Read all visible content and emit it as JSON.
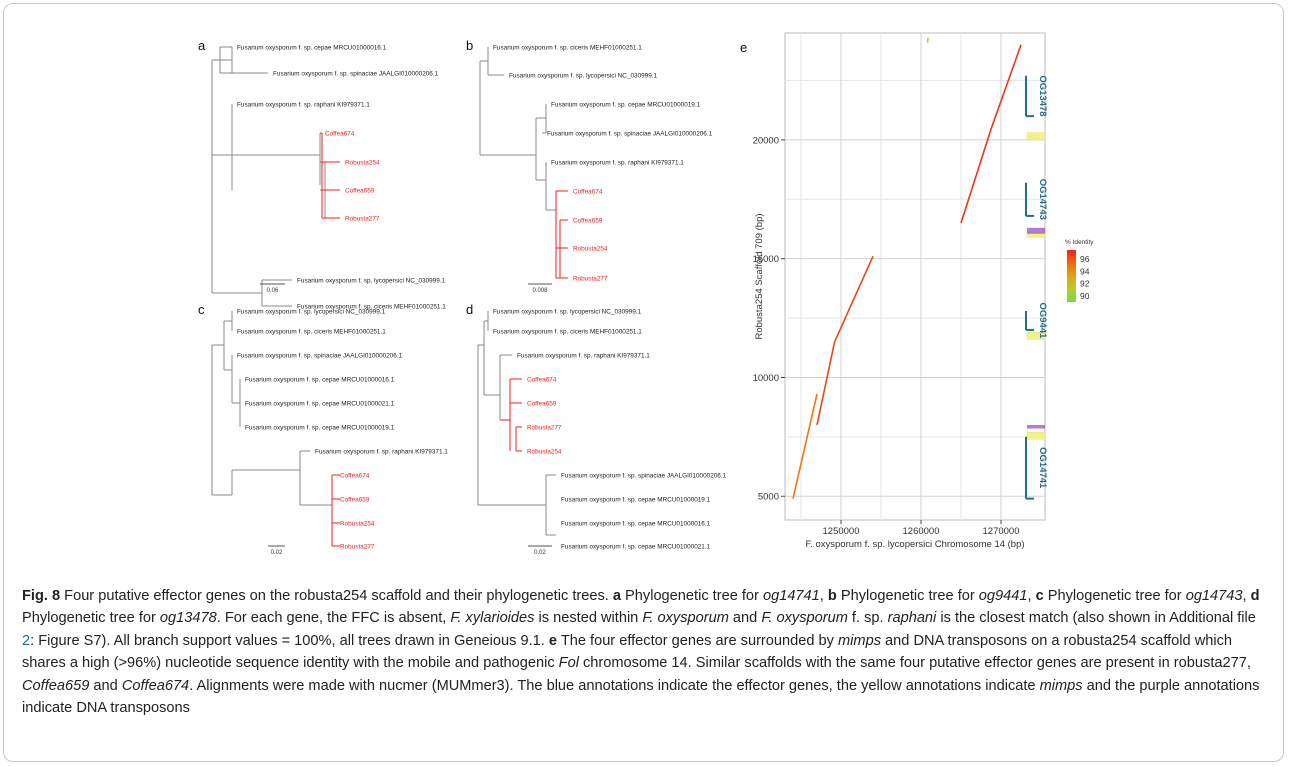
{
  "panels": {
    "a": {
      "letter": "a",
      "labels": [
        "Fusarium oxysporum f. sp. cepae MRCU01000016.1",
        "Fusarium oxysporum f. sp. spinaciae JAALGI010000206.1",
        "Fusarium oxysporum f. sp. raphani KI979371.1",
        "Coffea674",
        "Robusta254",
        "Coffea659",
        "Robusta277",
        "Fusarium oxysporum f. sp. lycopersici NC_030999.1",
        "Fusarium oxysporum f. sp. ciceris MEHF01000251.1"
      ],
      "scale": "0.06"
    },
    "b": {
      "letter": "b",
      "labels": [
        "Fusarium oxysporum f. sp. ciceris MEHF01000251.1",
        "Fusarium oxysporum f. sp. lycopersici NC_030999.1",
        "Fusarium oxysporum f. sp. cepae MRCU01000019.1",
        "Fusarium oxysporum f. sp. spinaciae JAALGI010000206.1",
        "Fusarium oxysporum f. sp. raphani KI979371.1",
        "Coffea674",
        "Coffea659",
        "Robusta254",
        "Robusta277"
      ],
      "scale": "0.008"
    },
    "c": {
      "letter": "c",
      "labels": [
        "Fusarium oxysporum f. sp. lycopersici NC_030999.1",
        "Fusarium oxysporum f. sp. ciceris MEHF01000251.1",
        "Fusarium oxysporum f. sp. spinaciae JAALGI010000206.1",
        "Fusarium oxysporum f. sp. cepae MRCU01000016.1",
        "Fusarium oxysporum f. sp. cepae MRCU01000021.1",
        "Fusarium oxysporum f. sp. cepae MRCU01000019.1",
        "Fusarium oxysporum f. sp. raphani KI979371.1",
        "Coffea674",
        "Coffea659",
        "Robusta254",
        "Robusta277"
      ],
      "scale": "0.02"
    },
    "d": {
      "letter": "d",
      "labels": [
        "Fusarium oxysporum f. sp. lycopersici NC_030999.1",
        "Fusarium oxysporum f. sp. ciceris MEHF01000251.1",
        "Fusarium oxysporum f. sp. raphani KI979371.1",
        "Coffea674",
        "Coffea659",
        "Robusta277",
        "Robusta254",
        "Fusarium oxysporum f. sp. spinaciae JAALGI010000206.1",
        "Fusarium oxysporum f. sp. cepae MRCU01000019.1",
        "Fusarium oxysporum f. sp. cepae MRCU01000016.1",
        "Fusarium oxysporum f. sp. cepae MRCU01000021.1"
      ],
      "scale": "0.02"
    }
  },
  "colors": {
    "tree_line": "#888888",
    "highlight": "#ee2222",
    "effector": "#1f6f8b",
    "mimp": "#f2f28a",
    "transposon": "#9b4fc7",
    "grid": "#d2d2d2"
  },
  "chart_data": {
    "type": "scatter",
    "letter": "e",
    "xlabel": "F. oxysporum f. sp. lycopersici Chromosome 14 (bp)",
    "ylabel": "Robusta254 Scaffold 709 (bp)",
    "xlim": [
      1243000,
      1275500
    ],
    "ylim": [
      4000,
      24500
    ],
    "x_ticks": [
      1250000,
      1260000,
      1270000
    ],
    "y_ticks": [
      5000,
      10000,
      15000,
      20000
    ],
    "grid": true,
    "segments": [
      {
        "x": [
          1244000,
          1247000
        ],
        "y": [
          4900,
          9300
        ],
        "identity": 95
      },
      {
        "x": [
          1247000,
          1249200
        ],
        "y": [
          8000,
          11500
        ],
        "identity": 96.5
      },
      {
        "x": [
          1249200,
          1254000
        ],
        "y": [
          11500,
          15100
        ],
        "identity": 96.5
      },
      {
        "x": [
          1265000,
          1268800
        ],
        "y": [
          16500,
          20500
        ],
        "identity": 97
      },
      {
        "x": [
          1268800,
          1272500
        ],
        "y": [
          20500,
          24000
        ],
        "identity": 97
      },
      {
        "x": [
          1260800,
          1260900
        ],
        "y": [
          24100,
          24300
        ],
        "identity": 91
      }
    ],
    "annotations": {
      "effectors": [
        {
          "name": "OG14741",
          "y": [
            4900,
            7500
          ]
        },
        {
          "name": "OG9441",
          "y": [
            12000,
            12800
          ]
        },
        {
          "name": "OG14743",
          "y": [
            16800,
            18200
          ]
        },
        {
          "name": "OG13478",
          "y": [
            21000,
            22700
          ]
        }
      ],
      "mimps": [
        [
          7400,
          7700
        ],
        [
          11600,
          11900
        ],
        [
          15900,
          16100
        ],
        [
          20000,
          20300
        ]
      ],
      "transposons": [
        [
          7850,
          8000
        ],
        [
          16050,
          16300
        ]
      ]
    },
    "legend": {
      "title": "% Identity",
      "ticks": [
        96,
        94,
        92,
        90
      ],
      "range": [
        89,
        97.5
      ],
      "position": "right"
    }
  },
  "caption": {
    "fig_label": "Fig. 8",
    "runs": [
      [
        " Four putative effector genes on the robusta254 scaffold and their phylogenetic trees. ",
        ""
      ],
      [
        "a",
        "b"
      ],
      [
        " Phylogenetic tree for ",
        ""
      ],
      [
        "og14741",
        "i"
      ],
      [
        ", ",
        ""
      ],
      [
        "b",
        "b"
      ],
      [
        " Phylogenetic tree for ",
        ""
      ],
      [
        "og9441",
        "i"
      ],
      [
        ", ",
        ""
      ],
      [
        "c",
        "b"
      ],
      [
        " Phylogenetic tree for ",
        ""
      ],
      [
        "og14743",
        "i"
      ],
      [
        ", ",
        ""
      ],
      [
        "d",
        "b"
      ],
      [
        " Phylogenetic tree for ",
        ""
      ],
      [
        "og13478",
        "i"
      ],
      [
        ". For each gene, the FFC is absent, ",
        ""
      ],
      [
        "F. xylarioides",
        "i"
      ],
      [
        " is nested within ",
        ""
      ],
      [
        "F. oxysporum",
        "i"
      ],
      [
        " and ",
        ""
      ],
      [
        "F. oxysporum",
        "i"
      ],
      [
        " f. sp. ",
        ""
      ],
      [
        "raphani",
        "i"
      ],
      [
        " is the closest match (also shown in Additional file ",
        ""
      ],
      [
        "2",
        "link"
      ],
      [
        ": Figure S7). All branch support values = 100%, all trees drawn in Geneious 9.1. ",
        ""
      ],
      [
        "e",
        "b"
      ],
      [
        " The four effector genes are surrounded by ",
        ""
      ],
      [
        "mimps",
        "i"
      ],
      [
        " and DNA transposons on a robusta254 scaffold which shares a high (>96%) nucleotide sequence identity with the mobile and pathogenic ",
        ""
      ],
      [
        "Fol",
        "i"
      ],
      [
        " chromosome 14. Similar scaffolds with the same four putative effector genes are present in robusta277, ",
        ""
      ],
      [
        "Coffea659",
        "i"
      ],
      [
        " and ",
        ""
      ],
      [
        "Coffea674",
        "i"
      ],
      [
        ". Alignments were made with nucmer (MUMmer3). The blue annotations indicate the effector genes, the yellow annotations indicate ",
        ""
      ],
      [
        "mimps",
        "i"
      ],
      [
        " and the purple annotations indicate DNA transposons",
        ""
      ]
    ]
  }
}
